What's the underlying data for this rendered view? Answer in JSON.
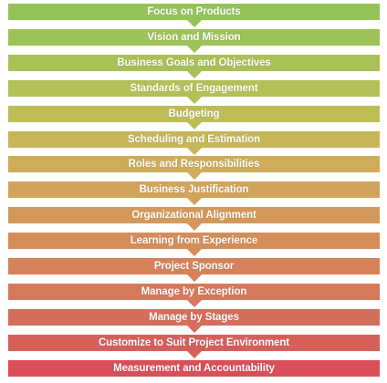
{
  "steps": [
    {
      "label": "Focus on Products",
      "color": "#94c35a"
    },
    {
      "label": "Vision and Mission",
      "color": "#9dc257"
    },
    {
      "label": "Business Goals and Objectives",
      "color": "#a7c156"
    },
    {
      "label": "Standards of Engagement",
      "color": "#b2c057"
    },
    {
      "label": "Budgeting",
      "color": "#bdbd58"
    },
    {
      "label": "Scheduling and Estimation",
      "color": "#c6b659"
    },
    {
      "label": "Roles and Responsibilities",
      "color": "#ceac59"
    },
    {
      "label": "Business Justification",
      "color": "#d2a35a"
    },
    {
      "label": "Organizational Alignment",
      "color": "#d4985a"
    },
    {
      "label": "Learning from Experience",
      "color": "#d58d5a"
    },
    {
      "label": "Project Sponsor",
      "color": "#d5825a"
    },
    {
      "label": "Manage by Exception",
      "color": "#d5795b"
    },
    {
      "label": "Manage by Stages",
      "color": "#d46e5b"
    },
    {
      "label": "Customize to Suit Project Environment",
      "color": "#d5605a"
    },
    {
      "label": "Measurement and Accountability",
      "color": "#d94e58"
    }
  ]
}
